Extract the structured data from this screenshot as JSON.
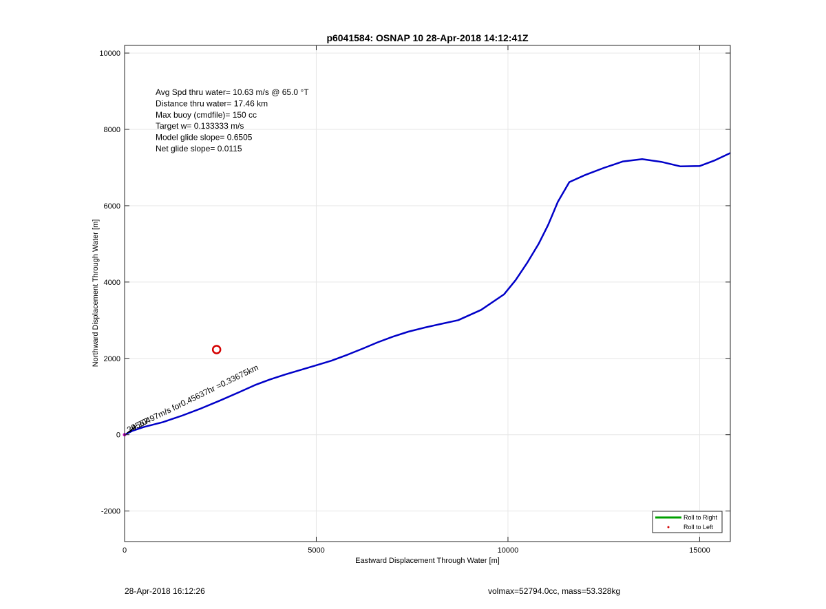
{
  "chart_data": {
    "type": "line",
    "title": "p6041584: OSNAP 10 28-Apr-2018 14:12:41Z",
    "xlabel": "Eastward Displacement Through Water [m]",
    "ylabel": "Northward Displacement Through Water [m]",
    "xlim": [
      0,
      15800
    ],
    "ylim": [
      -2800,
      10200
    ],
    "xticks": [
      0,
      5000,
      10000,
      15000
    ],
    "yticks": [
      -2000,
      0,
      2000,
      4000,
      6000,
      8000,
      10000
    ],
    "xtick_labels": [
      "0",
      "5000",
      "10000",
      "15000"
    ],
    "ytick_labels": [
      "-2000",
      "0",
      "2000",
      "4000",
      "6000",
      "8000",
      "10000"
    ],
    "grid": true,
    "annotations": [
      "Avg Spd thru water= 10.63 m/s @  65.0 °T",
      "Distance thru water= 17.46 km",
      "Max buoy (cmdfile)= 150 cc",
      "Target w= 0.133333 m/s",
      "Model glide slope= 0.6505",
      "Net glide slope= 0.0115"
    ],
    "current_label": "0.20497m/s for0.45637hr =0.33675km",
    "current_overlap_label": "34567",
    "current_vector": {
      "x": [
        60,
        300
      ],
      "y": [
        40,
        220
      ]
    },
    "series": [
      {
        "name": "track",
        "color": "#0000c8",
        "x": [
          0,
          200,
          500,
          1000,
          1500,
          2000,
          2500,
          3000,
          3400,
          3800,
          4200,
          4600,
          5000,
          5400,
          5800,
          6200,
          6600,
          7000,
          7400,
          7800,
          8200,
          8700,
          9300,
          9900,
          10200,
          10500,
          10800,
          11050,
          11300,
          11600,
          12000,
          12500,
          13000,
          13500,
          14000,
          14500,
          15000,
          15400,
          15800
        ],
        "y": [
          0,
          100,
          200,
          330,
          500,
          690,
          900,
          1120,
          1300,
          1450,
          1580,
          1700,
          1820,
          1940,
          2090,
          2250,
          2420,
          2570,
          2700,
          2800,
          2890,
          3000,
          3270,
          3680,
          4050,
          4500,
          5000,
          5500,
          6100,
          6620,
          6800,
          6990,
          7160,
          7220,
          7150,
          7030,
          7040,
          7190,
          7380
        ]
      }
    ],
    "marker": {
      "x": 2400,
      "y": 2230,
      "color": "#d40000"
    },
    "legend": {
      "placement": "bottom-right",
      "entries": [
        {
          "label": "Roll to Right",
          "color": "#00a000",
          "kind": "line"
        },
        {
          "label": "Roll to Left",
          "color": "#d40000",
          "kind": "dot"
        }
      ]
    }
  },
  "footer": {
    "left": "28-Apr-2018 16:12:26",
    "right": "volmax=52794.0cc, mass=53.328kg"
  }
}
